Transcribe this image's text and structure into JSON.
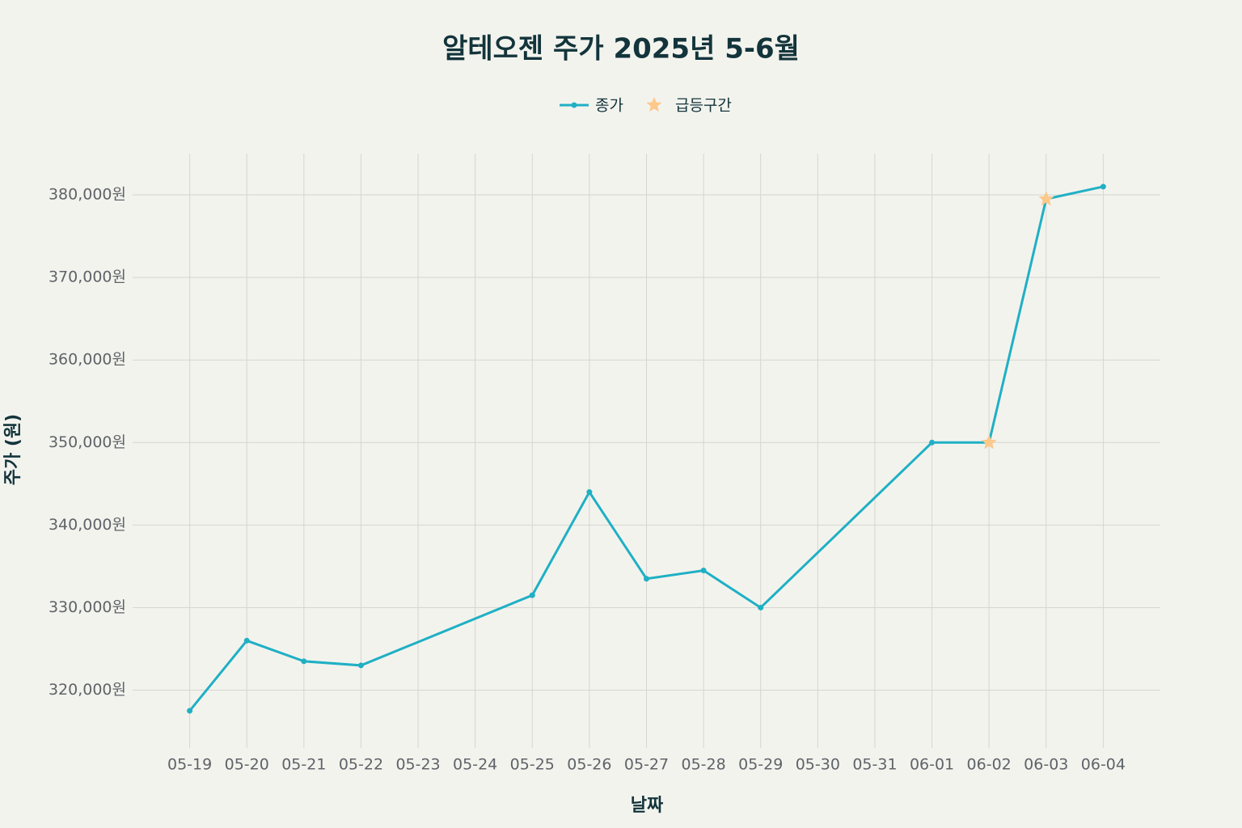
{
  "chart_data": {
    "type": "line",
    "title": "알테오젠 주가 2025년 5-6월",
    "x_label": "날짜",
    "y_label": "주가 (원)",
    "x": [
      "05-19",
      "05-20",
      "05-21",
      "05-22",
      "05-25",
      "05-26",
      "05-27",
      "05-28",
      "05-29",
      "06-01",
      "06-02",
      "06-03",
      "06-04"
    ],
    "series": [
      {
        "name": "종가",
        "color": "#1fb0c4",
        "marker": "circle",
        "x": [
          "05-19",
          "05-20",
          "05-21",
          "05-22",
          "05-25",
          "05-26",
          "05-27",
          "05-28",
          "05-29",
          "06-01",
          "06-02",
          "06-03",
          "06-04"
        ],
        "values": [
          317500,
          326000,
          323500,
          323000,
          331500,
          344000,
          333500,
          334500,
          330000,
          350000,
          350000,
          379500,
          381000
        ]
      },
      {
        "name": "급등구간",
        "color": "#fcc98c",
        "marker": "star",
        "x": [
          "06-02",
          "06-03"
        ],
        "values": [
          350000,
          379500
        ]
      }
    ],
    "xlim": [
      "05-18",
      "06-05"
    ],
    "xticks": [
      "05-19",
      "05-20",
      "05-21",
      "05-22",
      "05-23",
      "05-24",
      "05-25",
      "05-26",
      "05-27",
      "05-28",
      "05-29",
      "05-30",
      "05-31",
      "06-01",
      "06-02",
      "06-03",
      "06-04"
    ],
    "ylim": [
      313000,
      385000
    ],
    "yticks": [
      {
        "value": 320000,
        "label": "320,000원"
      },
      {
        "value": 330000,
        "label": "330,000원"
      },
      {
        "value": 340000,
        "label": "340,000원"
      },
      {
        "value": 350000,
        "label": "350,000원"
      },
      {
        "value": 360000,
        "label": "360,000원"
      },
      {
        "value": 370000,
        "label": "370,000원"
      },
      {
        "value": 380000,
        "label": "380,000원"
      }
    ],
    "grid": true
  }
}
